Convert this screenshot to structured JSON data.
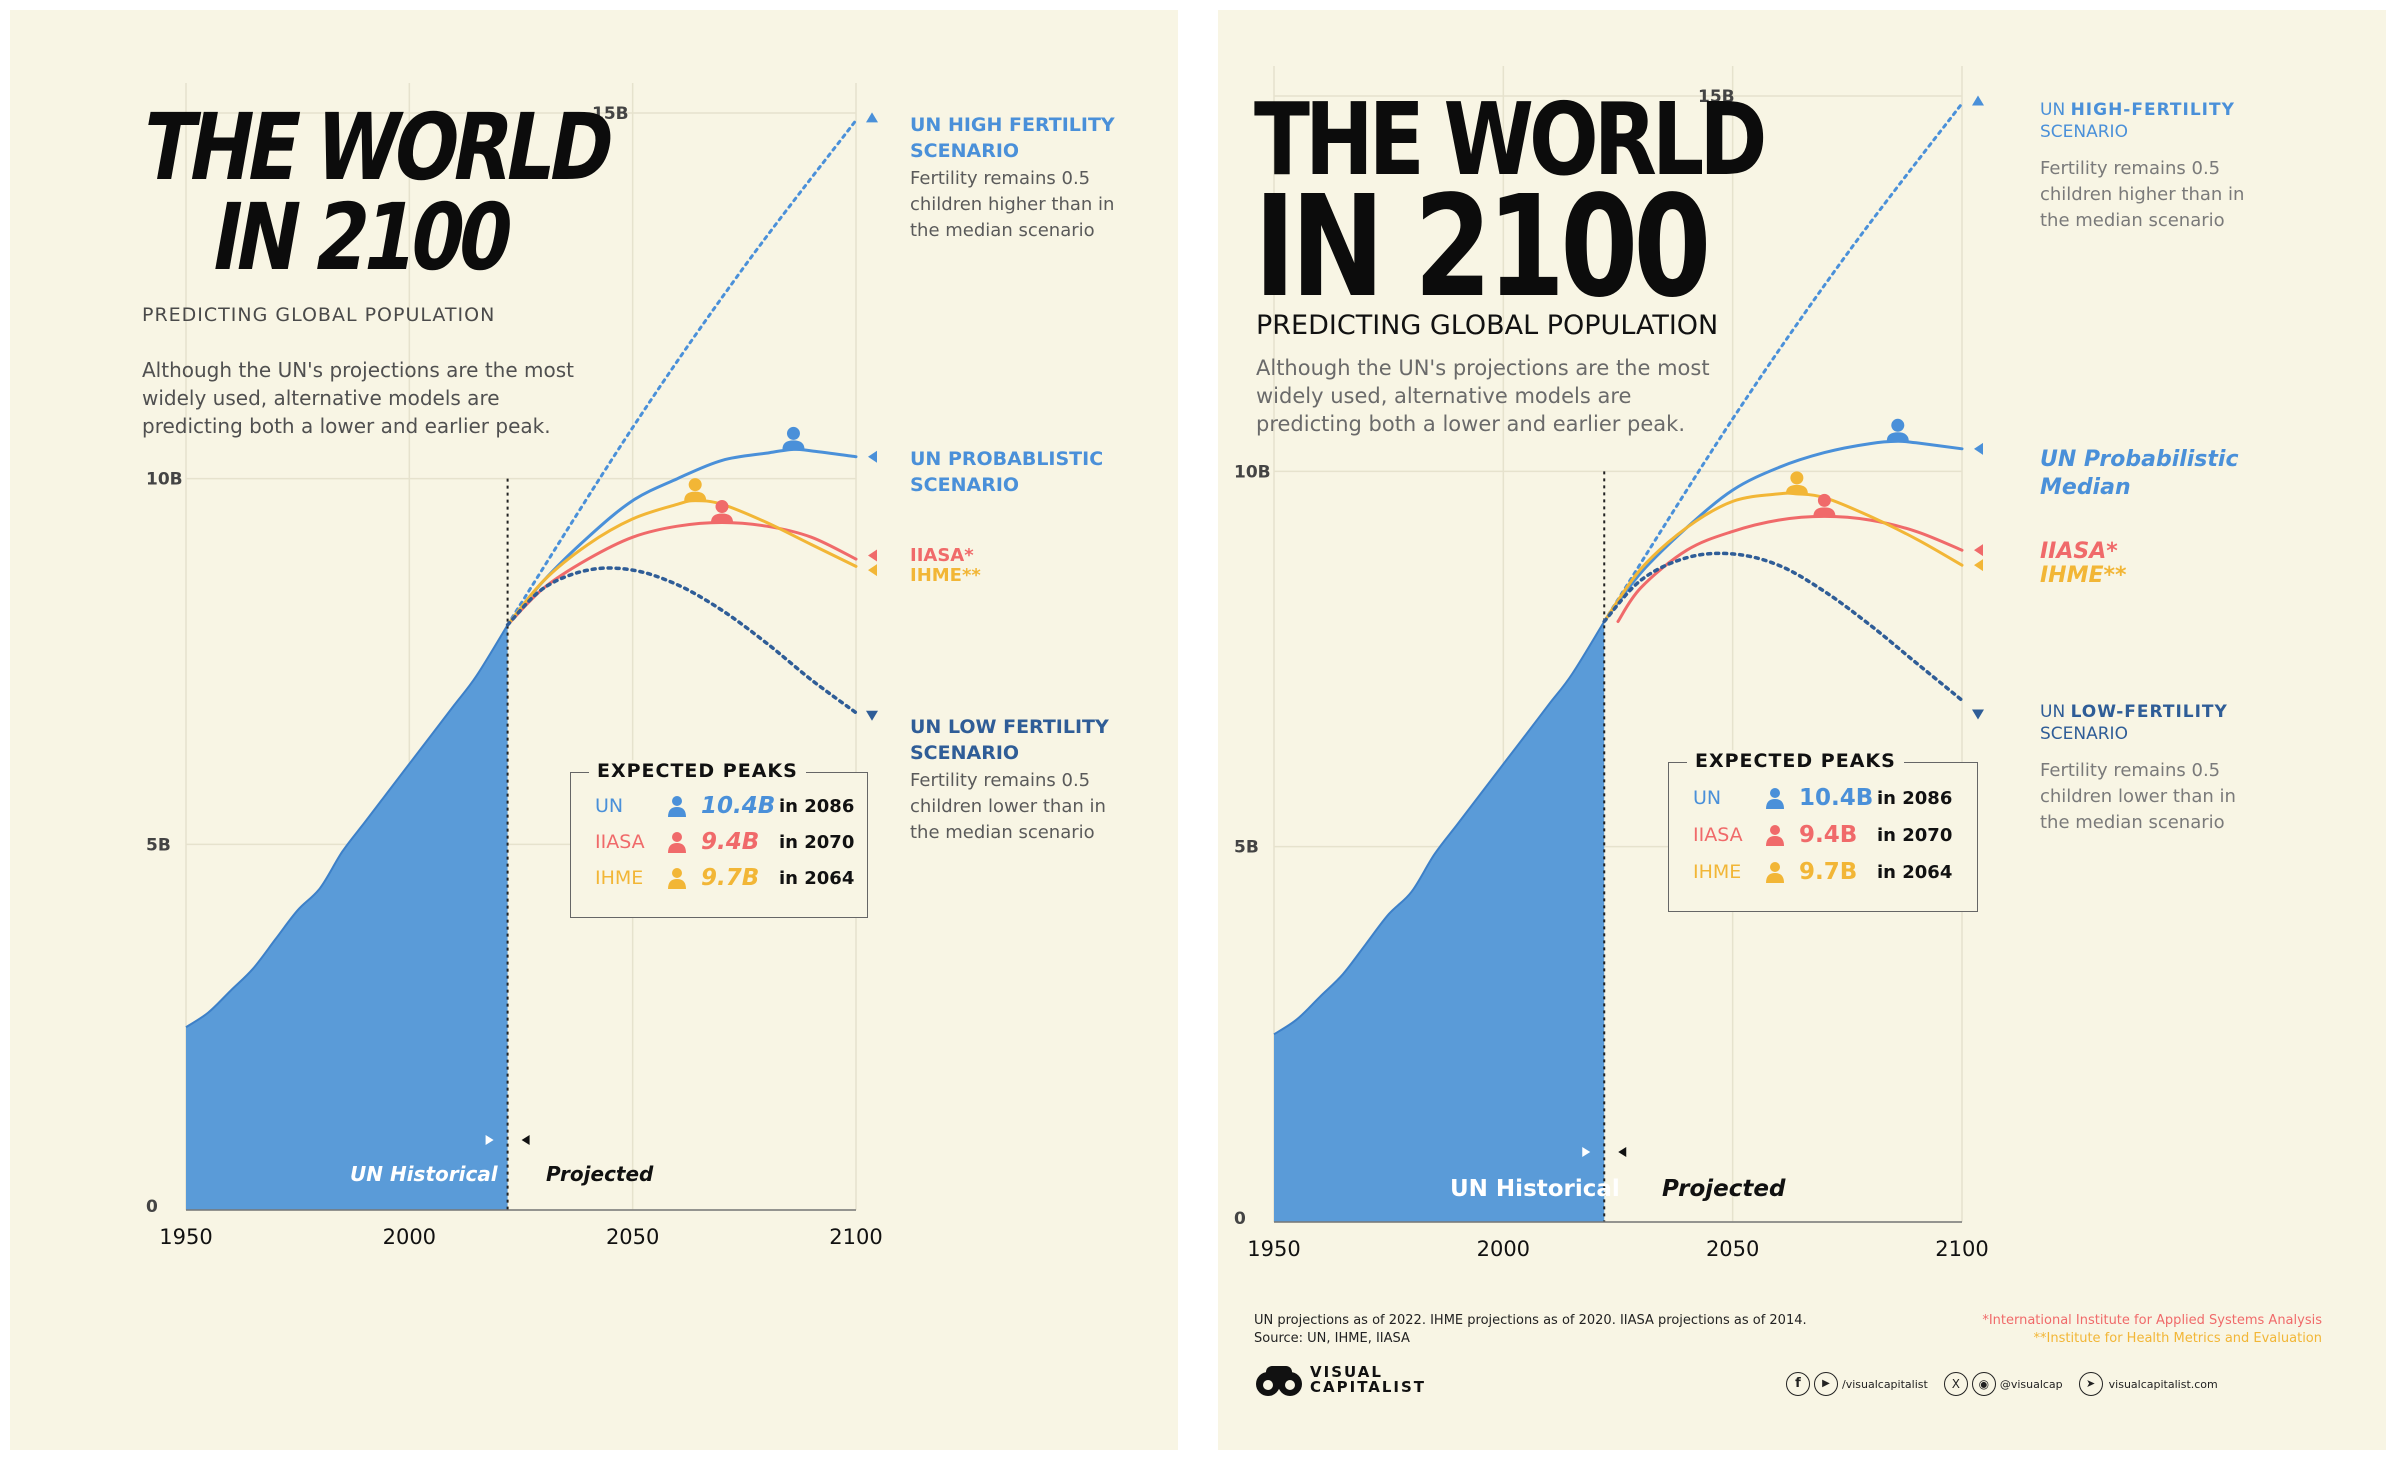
{
  "colors": {
    "background": "#f8f5e4",
    "un_blue": "#4a90d9",
    "un_dark": "#2f5d97",
    "iiasa_red": "#f06a6a",
    "ihme_yellow": "#f2b636",
    "history_fill": "#5a9bd8"
  },
  "left": {
    "title_line1": "THE WORLD",
    "title_line2": "IN 2100",
    "subtitle": "PREDICTING GLOBAL POPULATION",
    "description": "Although the UN's projections are the most widely used, alternative models are predicting both a lower and earlier peak.",
    "labels": {
      "high": "UN HIGH FERTILITY\nSCENARIO",
      "high_note": "Fertility remains 0.5\nchildren higher than in\nthe median scenario",
      "median": "UN PROBABLISTIC\nSCENARIO",
      "iiasa": "IIASA*",
      "ihme": "IHME**",
      "low": "UN LOW FERTILITY\nSCENARIO",
      "low_note": "Fertility remains 0.5\nchildren lower than in\nthe median scenario"
    },
    "historical_label": "UN Historical",
    "projected_label": "Projected"
  },
  "right": {
    "title_line1": "THE WORLD",
    "title_line2": "IN 2100",
    "subtitle": "PREDICTING GLOBAL POPULATION",
    "description": "Although the UN's projections are the most widely used, alternative models are predicting both a lower and earlier peak.",
    "labels": {
      "high_prefix": "UN ",
      "high_bold": "HIGH-FERTILITY",
      "high_second": "SCENARIO",
      "high_note": "Fertility remains 0.5\nchildren higher than in\nthe median scenario",
      "median": "UN Probabilistic\nMedian",
      "iiasa": "IIASA*",
      "ihme": "IHME**",
      "low_prefix": "UN ",
      "low_bold": "LOW-FERTILITY",
      "low_second": "SCENARIO",
      "low_note": "Fertility remains 0.5\nchildren lower than in\nthe median scenario"
    },
    "historical_label": "UN Historical",
    "projected_label": "Projected",
    "footer_notes": "UN projections as of 2022. IHME projections as of 2020. IIASA projections as of 2014.\nSource: UN, IHME, IIASA",
    "footnote_iiasa": "*International Institute for Applied Systems Analysis",
    "footnote_ihme": "**Institute for Health Metrics and Evaluation",
    "logo_text": "VISUAL\nCAPITALIST",
    "social_fb_yt": "/visualcapitalist",
    "social_x_ig": "@visualcap",
    "social_web": "visualcapitalist.com"
  },
  "peaks": {
    "title": "EXPECTED PEAKS",
    "rows": [
      {
        "name": "UN",
        "value": "10.4B",
        "year": "in 2086"
      },
      {
        "name": "IIASA",
        "value": "9.4B",
        "year": "in 2070"
      },
      {
        "name": "IHME",
        "value": "9.7B",
        "year": "in 2064"
      }
    ]
  },
  "chart_data": [
    {
      "type": "line",
      "title": "THE WORLD IN 2100",
      "subtitle": "PREDICTING GLOBAL POPULATION",
      "x_ticks": [
        1950,
        2000,
        2050,
        2100
      ],
      "y_ticks": [
        {
          "value": 0,
          "label": "0"
        },
        {
          "value": 5,
          "label": "5B"
        },
        {
          "value": 10,
          "label": "10B"
        },
        {
          "value": 15,
          "label": "15B"
        }
      ],
      "xlim": [
        1950,
        2100
      ],
      "ylim": [
        0,
        15
      ],
      "grid": true,
      "historical": {
        "label": "UN Historical",
        "x": [
          1950,
          1955,
          1960,
          1965,
          1970,
          1975,
          1980,
          1985,
          1990,
          1995,
          2000,
          2005,
          2010,
          2015,
          2022
        ],
        "y": [
          2.5,
          2.7,
          3.0,
          3.3,
          3.7,
          4.1,
          4.4,
          4.9,
          5.3,
          5.7,
          6.1,
          6.5,
          6.9,
          7.3,
          8.0
        ]
      },
      "series": [
        {
          "name": "UN HIGH FERTILITY SCENARIO",
          "x": [
            2022,
            2050,
            2075,
            2100
          ],
          "y": [
            8.0,
            10.7,
            12.9,
            14.9
          ]
        },
        {
          "name": "UN PROBABLISTIC SCENARIO",
          "x": [
            2022,
            2030,
            2040,
            2050,
            2060,
            2070,
            2080,
            2086,
            2090,
            2100
          ],
          "y": [
            8.0,
            8.6,
            9.2,
            9.7,
            10.0,
            10.25,
            10.35,
            10.4,
            10.38,
            10.3
          ]
        },
        {
          "name": "IIASA*",
          "x": [
            2022,
            2030,
            2040,
            2050,
            2060,
            2070,
            2080,
            2090,
            2100
          ],
          "y": [
            8.0,
            8.5,
            8.9,
            9.2,
            9.35,
            9.4,
            9.35,
            9.2,
            8.9
          ]
        },
        {
          "name": "IHME**",
          "x": [
            2022,
            2030,
            2040,
            2050,
            2060,
            2064,
            2070,
            2080,
            2090,
            2100
          ],
          "y": [
            8.0,
            8.6,
            9.1,
            9.45,
            9.65,
            9.7,
            9.65,
            9.4,
            9.1,
            8.8
          ]
        },
        {
          "name": "UN LOW FERTILITY SCENARIO",
          "x": [
            2022,
            2030,
            2040,
            2050,
            2060,
            2070,
            2080,
            2090,
            2100
          ],
          "y": [
            8.0,
            8.5,
            8.75,
            8.75,
            8.55,
            8.2,
            7.75,
            7.25,
            6.8
          ]
        }
      ],
      "peaks": [
        {
          "name": "UN",
          "year": 2086,
          "value": 10.4
        },
        {
          "name": "IIASA",
          "year": 2070,
          "value": 9.4
        },
        {
          "name": "IHME",
          "year": 2064,
          "value": 9.7
        }
      ]
    },
    {
      "type": "line",
      "title": "THE WORLD IN 2100",
      "subtitle": "PREDICTING GLOBAL POPULATION",
      "x_ticks": [
        1950,
        2000,
        2050,
        2100
      ],
      "y_ticks": [
        {
          "value": 0,
          "label": "0"
        },
        {
          "value": 5,
          "label": "5B"
        },
        {
          "value": 10,
          "label": "10B"
        },
        {
          "value": 15,
          "label": "15B"
        }
      ],
      "xlim": [
        1950,
        2100
      ],
      "ylim": [
        0,
        15
      ],
      "grid": true,
      "historical": {
        "label": "UN Historical",
        "x": [
          1950,
          1955,
          1960,
          1965,
          1970,
          1975,
          1980,
          1985,
          1990,
          1995,
          2000,
          2005,
          2010,
          2015,
          2022
        ],
        "y": [
          2.5,
          2.7,
          3.0,
          3.3,
          3.7,
          4.1,
          4.4,
          4.9,
          5.3,
          5.7,
          6.1,
          6.5,
          6.9,
          7.3,
          8.0
        ]
      },
      "series": [
        {
          "name": "UN HIGH-FERTILITY SCENARIO",
          "x": [
            2022,
            2050,
            2075,
            2100
          ],
          "y": [
            8.0,
            10.7,
            12.9,
            14.9
          ]
        },
        {
          "name": "UN Probabilistic Median",
          "x": [
            2022,
            2030,
            2040,
            2050,
            2060,
            2070,
            2080,
            2086,
            2090,
            2100
          ],
          "y": [
            8.0,
            8.65,
            9.25,
            9.75,
            10.05,
            10.25,
            10.37,
            10.4,
            10.38,
            10.3
          ]
        },
        {
          "name": "IIASA*",
          "x": [
            2025,
            2030,
            2040,
            2050,
            2060,
            2070,
            2080,
            2090,
            2100
          ],
          "y": [
            8.0,
            8.45,
            8.95,
            9.2,
            9.35,
            9.4,
            9.35,
            9.2,
            8.95
          ]
        },
        {
          "name": "IHME**",
          "x": [
            2022,
            2030,
            2040,
            2050,
            2060,
            2064,
            2070,
            2080,
            2090,
            2100
          ],
          "y": [
            8.0,
            8.7,
            9.25,
            9.6,
            9.7,
            9.7,
            9.65,
            9.4,
            9.1,
            8.75
          ]
        },
        {
          "name": "UN LOW-FERTILITY SCENARIO",
          "x": [
            2022,
            2030,
            2040,
            2050,
            2060,
            2070,
            2080,
            2090,
            2100
          ],
          "y": [
            8.0,
            8.55,
            8.85,
            8.9,
            8.75,
            8.4,
            7.95,
            7.45,
            6.95
          ]
        }
      ],
      "peaks": [
        {
          "name": "UN",
          "year": 2086,
          "value": 10.4
        },
        {
          "name": "IIASA",
          "year": 2070,
          "value": 9.4
        },
        {
          "name": "IHME",
          "year": 2064,
          "value": 9.7
        }
      ]
    }
  ]
}
